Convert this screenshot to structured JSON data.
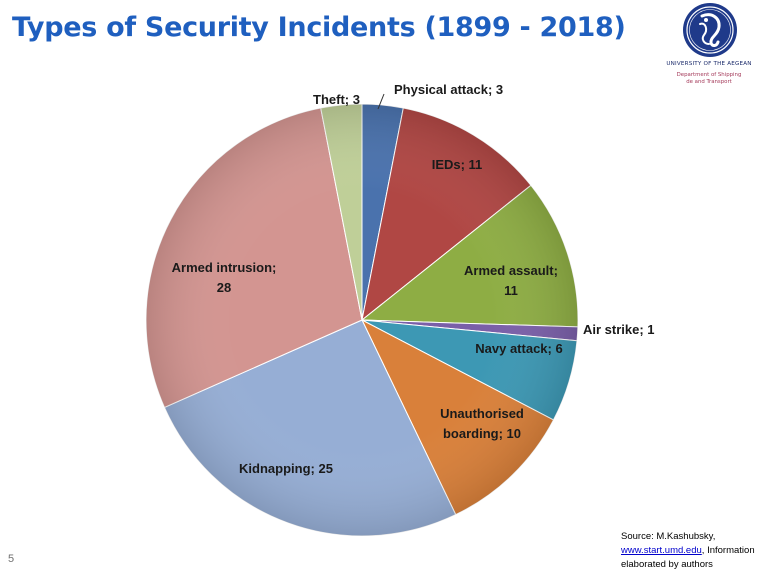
{
  "slide": {
    "title": "Types of Security Incidents (1899 - 2018)",
    "page_number": "5",
    "logo": {
      "university": "UNIVERSITY OF THE AEGEAN",
      "department_line1": "Department of Shipping",
      "department_line2": "de and Transport",
      "color": "#1f3a8a"
    },
    "source": {
      "prefix": "Source: M.Kashubsky, ",
      "link": "www.start.umd.edu",
      "suffix": ", Information elaborated by authors"
    }
  },
  "chart_data": {
    "type": "pie",
    "title": "Types of Security Incidents (1899 - 2018)",
    "start": "12 o'clock",
    "direction": "clockwise",
    "label_format": "Category; Value",
    "slices": [
      {
        "label": "Physical attack; 3",
        "name": "Physical attack",
        "value": 3,
        "color": "#4a72ad"
      },
      {
        "label": "IEDs; 11",
        "name": "IEDs",
        "value": 11,
        "color": "#b04744"
      },
      {
        "label": "Armed assault; 11",
        "name": "Armed assault",
        "value": 11,
        "color": "#8ead44"
      },
      {
        "label": "Air strike; 1",
        "name": "Air strike",
        "value": 1,
        "color": "#7a5fa8"
      },
      {
        "label": "Navy attack; 6",
        "name": "Navy attack",
        "value": 6,
        "color": "#3d98b4"
      },
      {
        "label": "Unauthorised boarding; 10",
        "name": "Unauthorised boarding",
        "value": 10,
        "color": "#d9803a"
      },
      {
        "label": "Kidnapping; 25",
        "name": "Kidnapping",
        "value": 25,
        "color": "#96aed5"
      },
      {
        "label": "Armed intrusion; 28",
        "name": "Armed intrusion",
        "value": 28,
        "color": "#d39591"
      },
      {
        "label": "Theft; 3",
        "name": "Theft",
        "value": 3,
        "color": "#bfcf98"
      }
    ]
  }
}
